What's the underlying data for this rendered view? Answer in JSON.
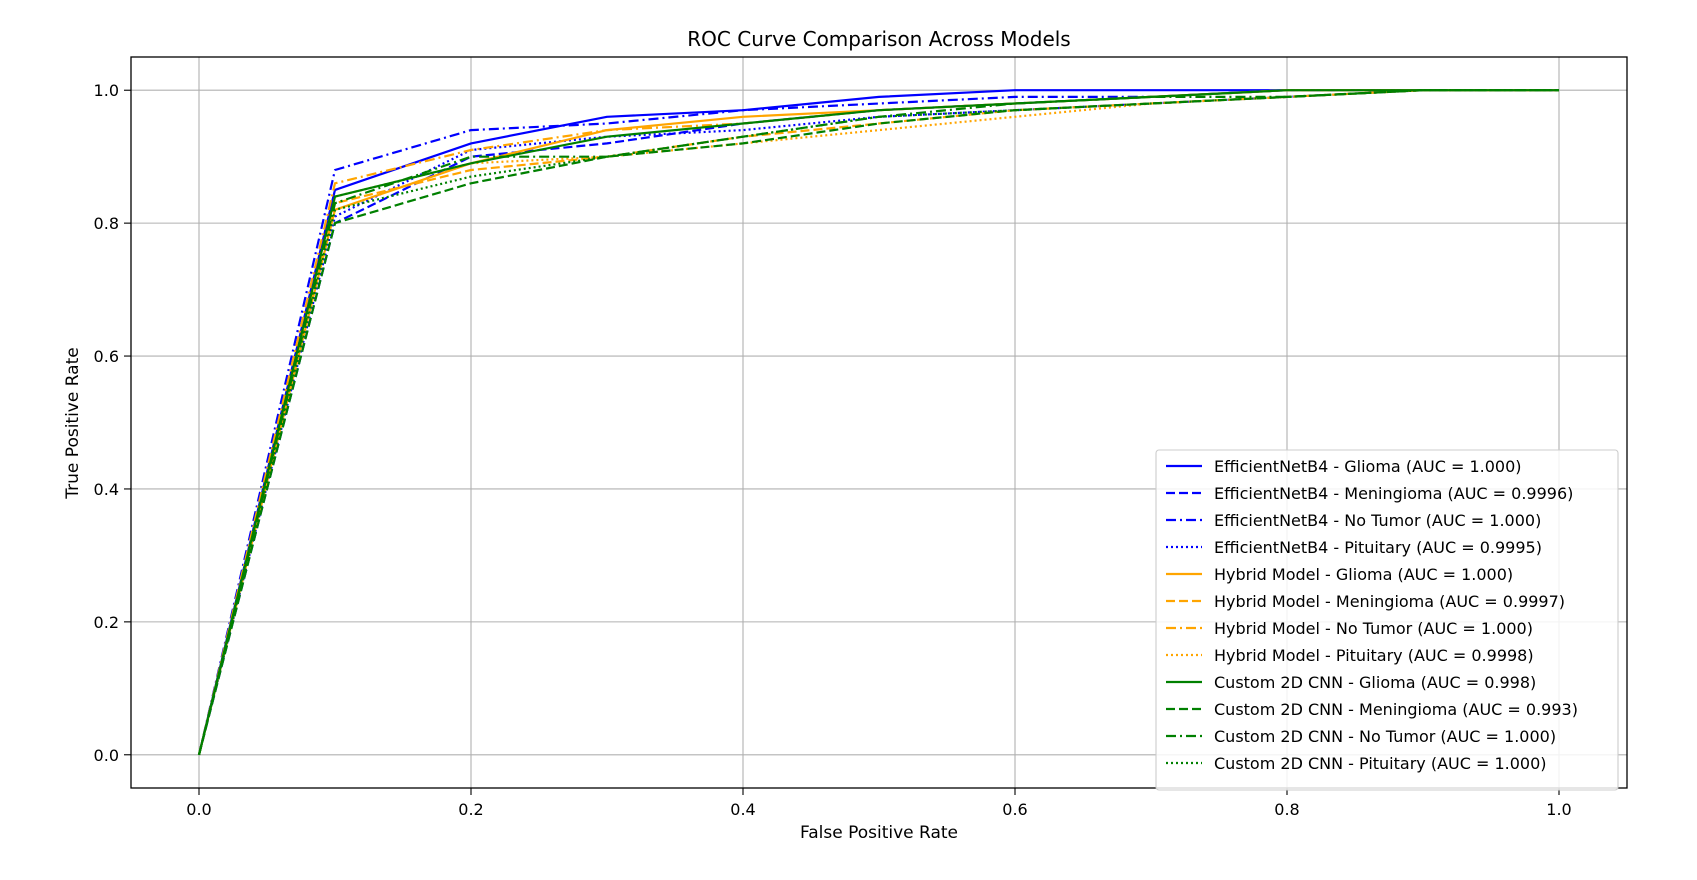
{
  "chart_data": {
    "type": "line",
    "title": "ROC Curve Comparison Across Models",
    "xlabel": "False Positive Rate",
    "ylabel": "True Positive Rate",
    "xlim": [
      -0.05,
      1.05
    ],
    "ylim": [
      -0.05,
      1.05
    ],
    "xticks": [
      0.0,
      0.2,
      0.4,
      0.6,
      0.8,
      1.0
    ],
    "yticks": [
      0.0,
      0.2,
      0.4,
      0.6,
      0.8,
      1.0
    ],
    "xtick_labels": [
      "0.0",
      "0.2",
      "0.4",
      "0.6",
      "0.8",
      "1.0"
    ],
    "ytick_labels": [
      "0.0",
      "0.2",
      "0.4",
      "0.6",
      "0.8",
      "1.0"
    ],
    "grid": true,
    "legend_position": "lower-right",
    "x": [
      0.0,
      0.1,
      0.2,
      0.3,
      0.4,
      0.5,
      0.6,
      0.7,
      0.8,
      0.9,
      1.0
    ],
    "series": [
      {
        "name": "EfficientNetB4 - Glioma (AUC = 1.000)",
        "color": "#0000ff",
        "dash": "solid",
        "values": [
          0.0,
          0.85,
          0.92,
          0.96,
          0.97,
          0.99,
          1.0,
          1.0,
          1.0,
          1.0,
          1.0
        ]
      },
      {
        "name": "EfficientNetB4 - Meningioma (AUC = 0.9996)",
        "color": "#0000ff",
        "dash": "dashed",
        "values": [
          0.0,
          0.8,
          0.9,
          0.92,
          0.95,
          0.97,
          0.98,
          0.99,
          1.0,
          1.0,
          1.0
        ]
      },
      {
        "name": "EfficientNetB4 - No Tumor (AUC = 1.000)",
        "color": "#0000ff",
        "dash": "dashdot",
        "values": [
          0.0,
          0.88,
          0.94,
          0.95,
          0.97,
          0.98,
          0.99,
          0.99,
          1.0,
          1.0,
          1.0
        ]
      },
      {
        "name": "EfficientNetB4 - Pituitary (AUC = 0.9995)",
        "color": "#0000ff",
        "dash": "dotted",
        "values": [
          0.0,
          0.81,
          0.91,
          0.93,
          0.94,
          0.96,
          0.97,
          0.98,
          0.99,
          1.0,
          1.0
        ]
      },
      {
        "name": "Hybrid Model - Glioma (AUC = 1.000)",
        "color": "#ffa500",
        "dash": "solid",
        "values": [
          0.0,
          0.82,
          0.89,
          0.94,
          0.96,
          0.97,
          0.98,
          0.99,
          1.0,
          1.0,
          1.0
        ]
      },
      {
        "name": "Hybrid Model - Meningioma (AUC = 0.9997)",
        "color": "#ffa500",
        "dash": "dashed",
        "values": [
          0.0,
          0.83,
          0.88,
          0.9,
          0.93,
          0.95,
          0.97,
          0.98,
          0.99,
          1.0,
          1.0
        ]
      },
      {
        "name": "Hybrid Model - No Tumor (AUC = 1.000)",
        "color": "#ffa500",
        "dash": "dashdot",
        "values": [
          0.0,
          0.86,
          0.91,
          0.94,
          0.95,
          0.97,
          0.98,
          0.99,
          1.0,
          1.0,
          1.0
        ]
      },
      {
        "name": "Hybrid Model - Pituitary (AUC = 0.9998)",
        "color": "#ffa500",
        "dash": "dotted",
        "values": [
          0.0,
          0.84,
          0.89,
          0.9,
          0.92,
          0.94,
          0.96,
          0.98,
          0.99,
          1.0,
          1.0
        ]
      },
      {
        "name": "Custom 2D CNN - Glioma (AUC = 0.998)",
        "color": "#008000",
        "dash": "solid",
        "values": [
          0.0,
          0.84,
          0.89,
          0.93,
          0.95,
          0.97,
          0.98,
          0.99,
          1.0,
          1.0,
          1.0
        ]
      },
      {
        "name": "Custom 2D CNN - Meningioma (AUC = 0.993)",
        "color": "#008000",
        "dash": "dashed",
        "values": [
          0.0,
          0.8,
          0.86,
          0.9,
          0.92,
          0.95,
          0.97,
          0.98,
          0.99,
          1.0,
          1.0
        ]
      },
      {
        "name": "Custom 2D CNN - No Tumor (AUC = 1.000)",
        "color": "#008000",
        "dash": "dashdot",
        "values": [
          0.0,
          0.83,
          0.9,
          0.9,
          0.93,
          0.96,
          0.98,
          0.99,
          0.99,
          1.0,
          1.0
        ]
      },
      {
        "name": "Custom 2D CNN - Pituitary (AUC = 1.000)",
        "color": "#008000",
        "dash": "dotted",
        "values": [
          0.0,
          0.82,
          0.87,
          0.9,
          0.93,
          0.96,
          0.97,
          0.98,
          0.99,
          1.0,
          1.0
        ]
      }
    ]
  }
}
